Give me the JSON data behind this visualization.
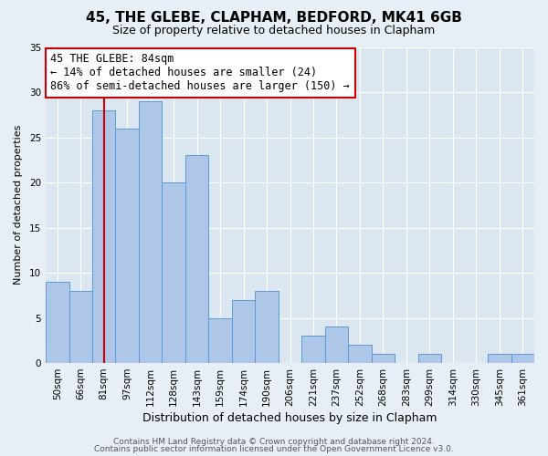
{
  "title": "45, THE GLEBE, CLAPHAM, BEDFORD, MK41 6GB",
  "subtitle": "Size of property relative to detached houses in Clapham",
  "xlabel": "Distribution of detached houses by size in Clapham",
  "ylabel": "Number of detached properties",
  "bar_labels": [
    "50sqm",
    "66sqm",
    "81sqm",
    "97sqm",
    "112sqm",
    "128sqm",
    "143sqm",
    "159sqm",
    "174sqm",
    "190sqm",
    "206sqm",
    "221sqm",
    "237sqm",
    "252sqm",
    "268sqm",
    "283sqm",
    "299sqm",
    "314sqm",
    "330sqm",
    "345sqm",
    "361sqm"
  ],
  "bar_values": [
    9,
    8,
    28,
    26,
    29,
    20,
    23,
    5,
    7,
    8,
    0,
    3,
    4,
    2,
    1,
    0,
    1,
    0,
    0,
    1,
    1
  ],
  "bar_color": "#aec6e8",
  "bar_edge_color": "#5b9bd5",
  "vline_x": 2,
  "vline_color": "#cc0000",
  "annotation_line1": "45 THE GLEBE: 84sqm",
  "annotation_line2": "← 14% of detached houses are smaller (24)",
  "annotation_line3": "86% of semi-detached houses are larger (150) →",
  "annotation_box_edge_color": "#cc0000",
  "annotation_box_face_color": "#ffffff",
  "ylim": [
    0,
    35
  ],
  "yticks": [
    0,
    5,
    10,
    15,
    20,
    25,
    30,
    35
  ],
  "background_color": "#e8eef5",
  "plot_background_color": "#dce6f0",
  "footer_line1": "Contains HM Land Registry data © Crown copyright and database right 2024.",
  "footer_line2": "Contains public sector information licensed under the Open Government Licence v3.0.",
  "title_fontsize": 11,
  "subtitle_fontsize": 9,
  "xlabel_fontsize": 9,
  "ylabel_fontsize": 8,
  "tick_fontsize": 7.5,
  "annotation_fontsize": 8.5,
  "footer_fontsize": 6.5
}
